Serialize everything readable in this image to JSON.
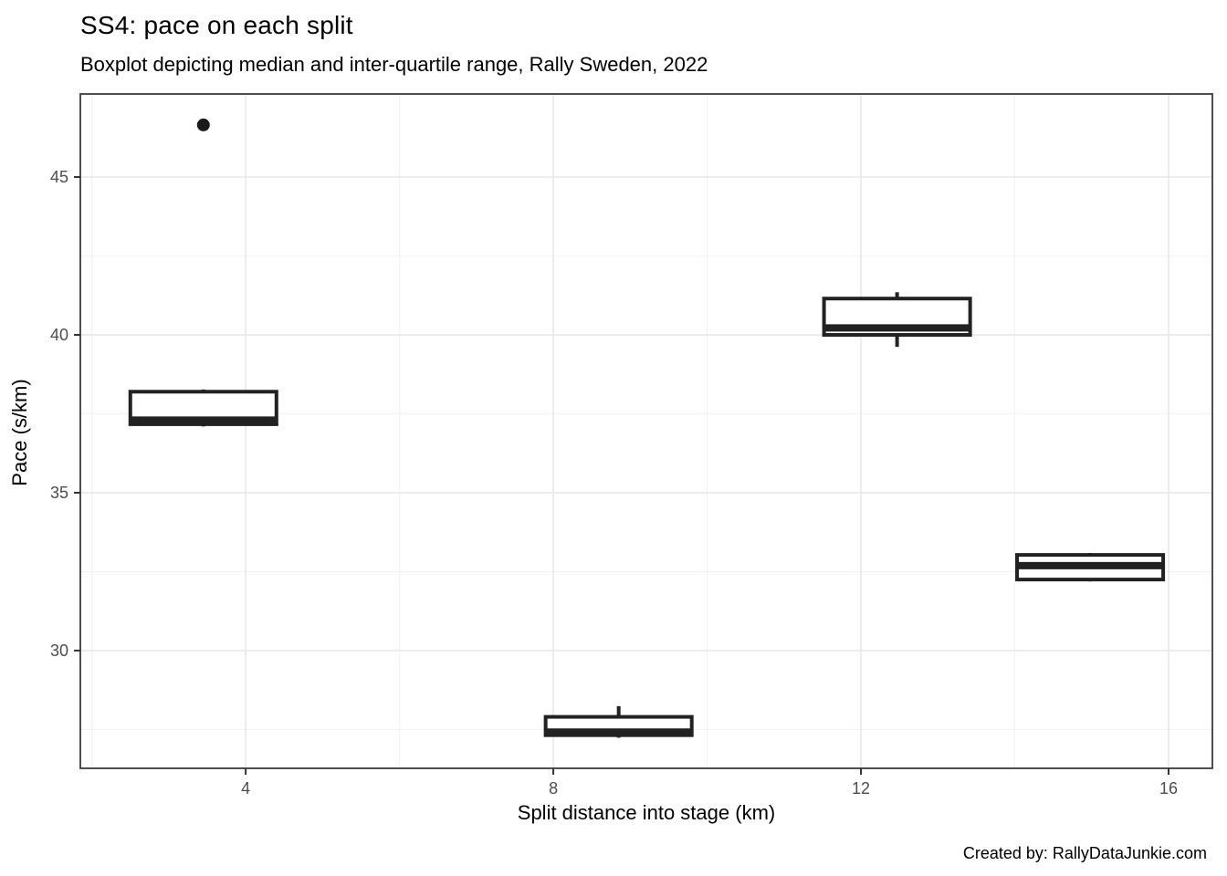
{
  "figure": {
    "title": "SS4: pace on each split",
    "subtitle": "Boxplot depicting median and inter-quartile range, Rally Sweden, 2022",
    "caption": "Created by: RallyDataJunkie.com"
  },
  "chart_data": {
    "type": "boxplot",
    "title": "SS4: pace on each split",
    "subtitle": "Boxplot depicting median and inter-quartile range, Rally Sweden, 2022",
    "xlabel": "Split distance into stage (km)",
    "ylabel": "Pace (s/km)",
    "caption": "Created by: RallyDataJunkie.com",
    "xlim": [
      1.85,
      16.57
    ],
    "ylim": [
      26.27,
      47.63
    ],
    "x_major_ticks": [
      4,
      8,
      12,
      16
    ],
    "x_minor_ticks": [
      2,
      6,
      10,
      14
    ],
    "y_major_ticks": [
      30,
      35,
      40,
      45
    ],
    "y_minor_ticks": [
      27.5,
      32.5,
      37.5,
      42.5
    ],
    "grid": true,
    "legend": "none",
    "box_width_km": 1.9,
    "boxes": [
      {
        "x": 3.45,
        "whisker_low": 37.1,
        "q1": 37.17,
        "median": 37.3,
        "q3": 38.2,
        "whisker_high": 38.27,
        "outliers": [
          46.65
        ]
      },
      {
        "x": 8.85,
        "whisker_low": 27.24,
        "q1": 27.32,
        "median": 27.42,
        "q3": 27.9,
        "whisker_high": 28.24,
        "outliers": []
      },
      {
        "x": 12.47,
        "whisker_low": 39.62,
        "q1": 40.0,
        "median": 40.22,
        "q3": 41.15,
        "whisker_high": 41.35,
        "outliers": []
      },
      {
        "x": 14.98,
        "whisker_low": 32.19,
        "q1": 32.25,
        "median": 32.69,
        "q3": 33.03,
        "whisker_high": 33.09,
        "outliers": []
      }
    ],
    "colors": {
      "background": "#ffffff",
      "panel_background": "#ffffff",
      "panel_border": "#3d3d3d",
      "grid_major": "#e8e8e8",
      "grid_minor": "#f3f3f3",
      "box_stroke": "#222222",
      "box_fill": "#ffffff",
      "outlier": "#1a1a1a",
      "tick_mark": "#333333",
      "tick_label": "#4d4d4d",
      "text": "#000000"
    }
  }
}
